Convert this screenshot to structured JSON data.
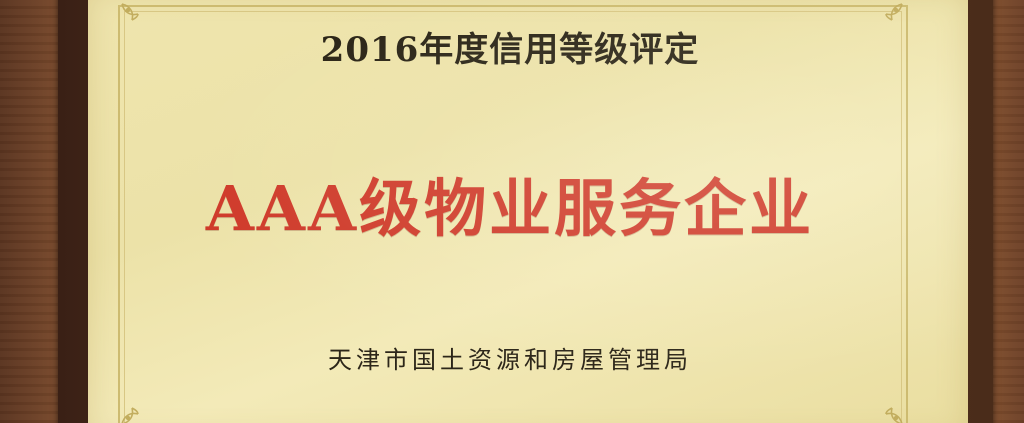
{
  "plaque": {
    "heading": "2016年度信用等级评定",
    "title": "AAA级物业服务企业",
    "issuer": "天津市国土资源和房屋管理局"
  },
  "colors": {
    "plaque_background": "#ece2a8",
    "title_red": "#cf3a2a",
    "text_dark": "#2a2416",
    "frame_wood": "#5a3a25"
  },
  "icons": {
    "corner_ornament": "floral-corner-ornament-icon"
  }
}
